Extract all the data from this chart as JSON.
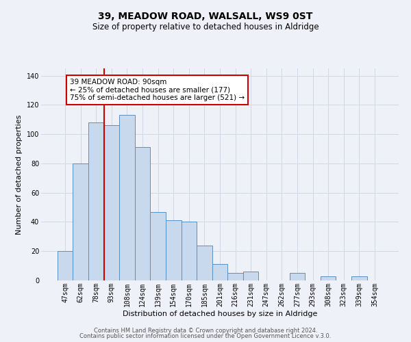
{
  "title": "39, MEADOW ROAD, WALSALL, WS9 0ST",
  "subtitle": "Size of property relative to detached houses in Aldridge",
  "xlabel": "Distribution of detached houses by size in Aldridge",
  "ylabel": "Number of detached properties",
  "categories": [
    "47sqm",
    "62sqm",
    "78sqm",
    "93sqm",
    "108sqm",
    "124sqm",
    "139sqm",
    "154sqm",
    "170sqm",
    "185sqm",
    "201sqm",
    "216sqm",
    "231sqm",
    "247sqm",
    "262sqm",
    "277sqm",
    "293sqm",
    "308sqm",
    "323sqm",
    "339sqm",
    "354sqm"
  ],
  "values": [
    20,
    80,
    108,
    106,
    113,
    91,
    47,
    41,
    40,
    24,
    11,
    5,
    6,
    0,
    0,
    5,
    0,
    3,
    0,
    3,
    0
  ],
  "bar_color": "#c8d9ee",
  "bar_edge_color": "#5a8fc0",
  "red_line_index": 3,
  "annotation_lines": [
    "39 MEADOW ROAD: 90sqm",
    "← 25% of detached houses are smaller (177)",
    "75% of semi-detached houses are larger (521) →"
  ],
  "annotation_box_edge": "#cc0000",
  "ylim": [
    0,
    145
  ],
  "yticks": [
    0,
    20,
    40,
    60,
    80,
    100,
    120,
    140
  ],
  "grid_color": "#d0d8e8",
  "background_color": "#eef2f8",
  "footer_lines": [
    "Contains HM Land Registry data © Crown copyright and database right 2024.",
    "Contains public sector information licensed under the Open Government Licence v.3.0."
  ],
  "title_fontsize": 10,
  "subtitle_fontsize": 8.5,
  "axis_label_fontsize": 8,
  "tick_fontsize": 7,
  "annotation_fontsize": 7.5,
  "footer_fontsize": 6
}
